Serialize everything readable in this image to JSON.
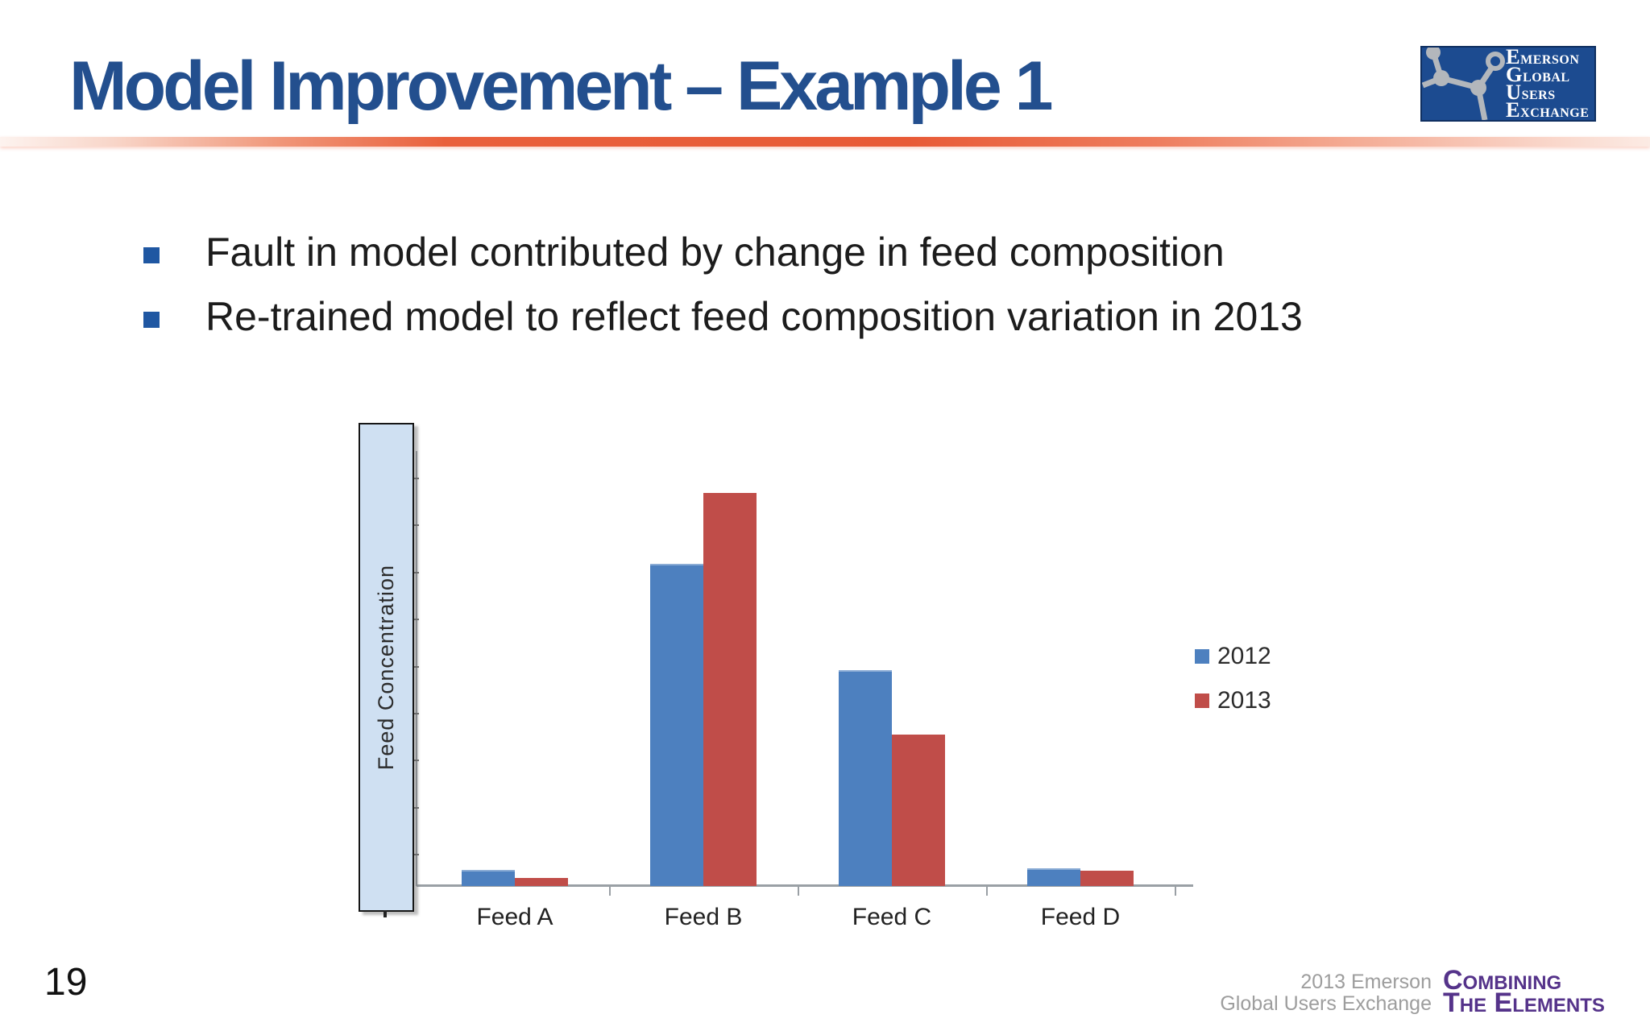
{
  "slide": {
    "title": "Model Improvement – Example 1",
    "page_number": "19",
    "bullets": [
      "Fault in model contributed by change in feed composition",
      "Re-trained model to reflect feed composition variation in 2013"
    ]
  },
  "logo": {
    "lines": [
      "Emerson",
      "Global",
      "Users",
      "Exchange"
    ],
    "background_color": "#1c4b90",
    "graphic": "molecule-network-icon"
  },
  "chart_data": {
    "type": "bar",
    "title": "",
    "categories": [
      "Feed A",
      "Feed B",
      "Feed C",
      "Feed D"
    ],
    "series": [
      {
        "name": "2012",
        "color": "#4d80bf",
        "values": [
          0.041,
          0.82,
          0.55,
          0.045
        ]
      },
      {
        "name": "2013",
        "color": "#c04d49",
        "values": [
          0.02,
          1.0,
          0.385,
          0.039
        ]
      }
    ],
    "xlabel": "",
    "ylabel": "Feed Concentration",
    "ylim": [
      0,
      1.05
    ],
    "grid": false,
    "legend_position": "right",
    "value_axis_labels_hidden": true
  },
  "footer": {
    "credit_line1": "2013 Emerson",
    "credit_line2": "Global Users Exchange",
    "brand_line1": "Combining",
    "brand_line2": "The Elements"
  },
  "colors": {
    "title": "#234f8e",
    "bullet_square": "#1f57a2",
    "divider_orange": "#e85a36",
    "footer_gray": "#9d9d9d",
    "footer_purple": "#55338a",
    "axis_gray": "#9aa0a5",
    "ylabel_box_fill": "#cfe0f2"
  }
}
